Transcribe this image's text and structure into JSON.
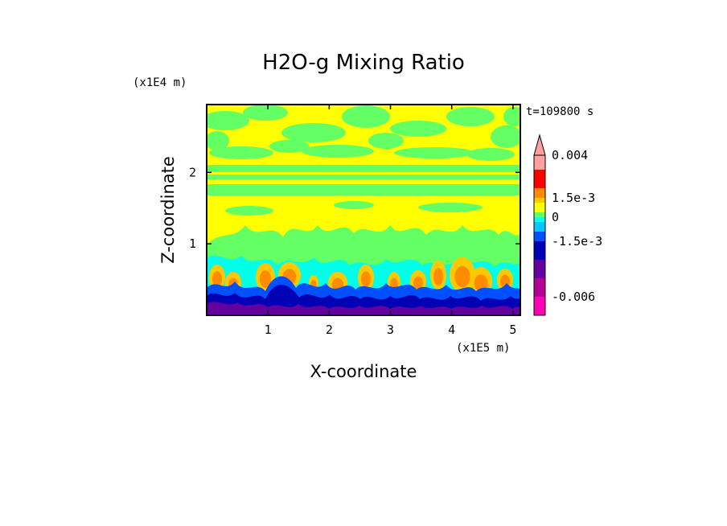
{
  "chart_data": {
    "type": "heatmap",
    "title": "H2O-g Mixing Ratio",
    "xlabel": "X-coordinate",
    "ylabel": "Z-coordinate",
    "x_multiplier": "(x1E5 m)",
    "y_multiplier": "(x1E4 m)",
    "time_label": "t=109800 s",
    "xlim": [
      0,
      5.12
    ],
    "ylim": [
      0,
      2.95
    ],
    "x_ticks": [
      "1",
      "2",
      "3",
      "4",
      "5"
    ],
    "x_tick_values": [
      1,
      2,
      3,
      4,
      5
    ],
    "y_ticks": [
      "1",
      "2"
    ],
    "y_tick_values": [
      1,
      2
    ],
    "colorbar": {
      "levels": [
        -0.009,
        -0.006,
        -0.003,
        -0.002,
        -0.0015,
        -0.001,
        -0.0005,
        0,
        0.0005,
        0.001,
        0.0015,
        0.002,
        0.003,
        0.004
      ],
      "colors": [
        "#ff00b4",
        "#b40096",
        "#6400a0",
        "#0000b4",
        "#0050ff",
        "#00c8ff",
        "#00ffe6",
        "#64ff64",
        "#ffff00",
        "#ffc800",
        "#ff8c00",
        "#ff0000",
        "#ffa0a0"
      ],
      "tick_labels": [
        {
          "value": 0.004,
          "label": "0.004"
        },
        {
          "value": 0.0015,
          "label": "1.5e-3"
        },
        {
          "value": 0,
          "label": "0"
        },
        {
          "value": -0.0015,
          "label": "-1.5e-3"
        },
        {
          "value": -0.006,
          "label": "-0.006"
        }
      ]
    }
  }
}
